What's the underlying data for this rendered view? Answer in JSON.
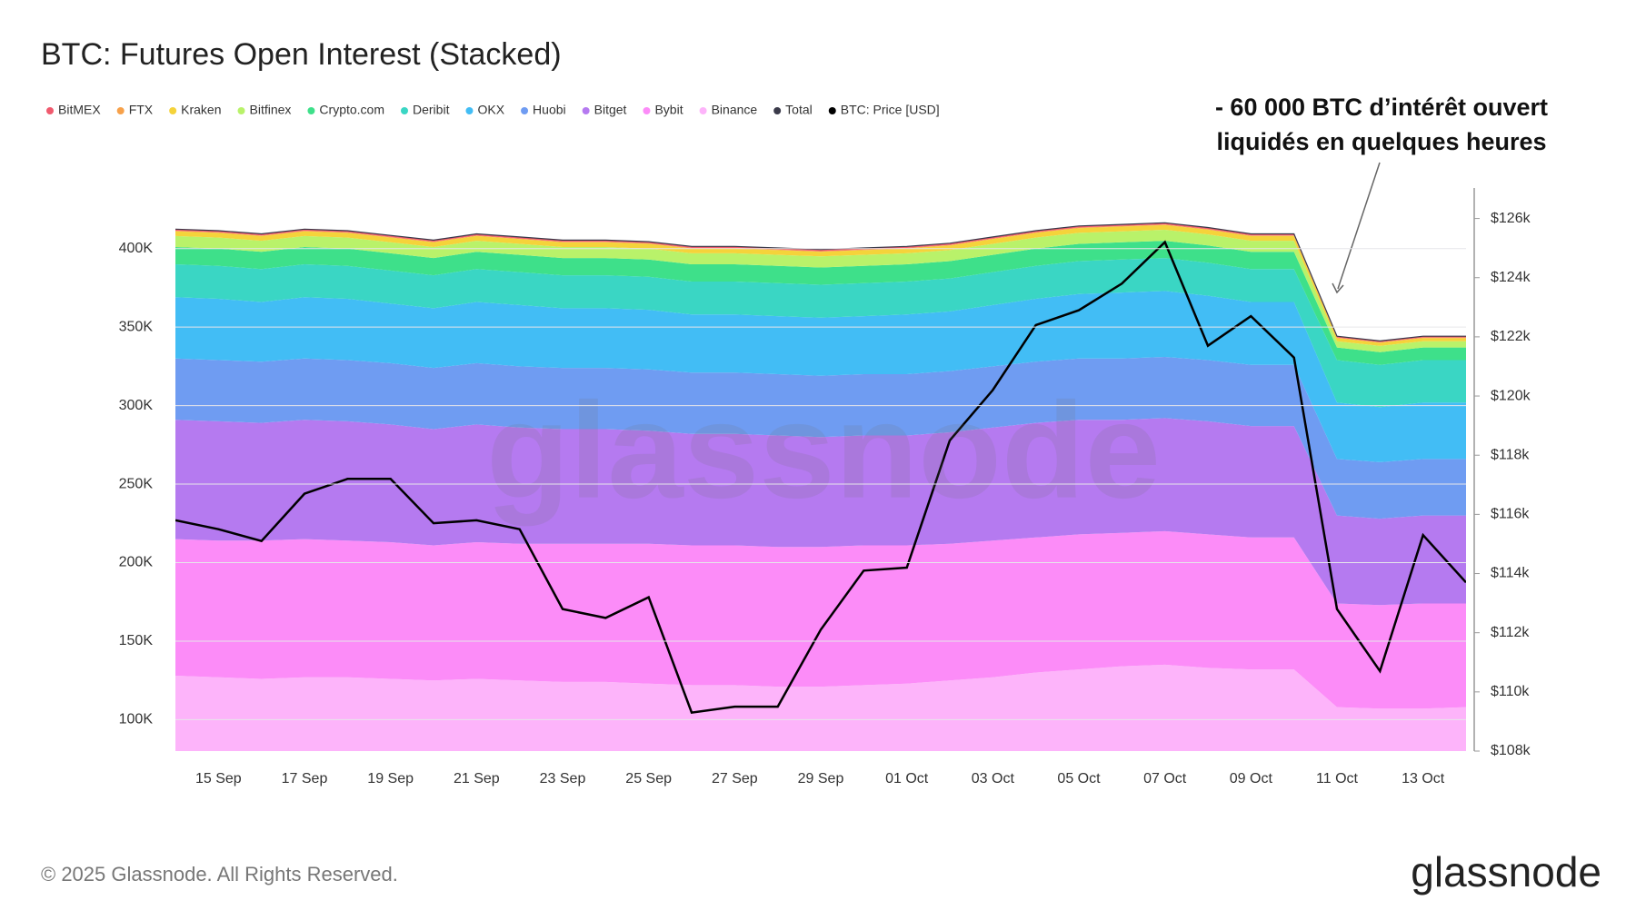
{
  "chart_data": {
    "type": "area",
    "stacked": true,
    "title": "BTC: Futures Open Interest (Stacked)",
    "annotation": [
      "- 60 000 BTC d’intérêt ouvert",
      "liquidés en quelques heures"
    ],
    "watermark": "glassnode",
    "footer": "© 2025 Glassnode. All Rights Reserved.",
    "logo": "glassnode",
    "grid": true,
    "categories": [
      null,
      "15 Sep",
      null,
      "17 Sep",
      null,
      "19 Sep",
      null,
      "21 Sep",
      null,
      "23 Sep",
      null,
      "25 Sep",
      null,
      "27 Sep",
      null,
      "29 Sep",
      null,
      "01 Oct",
      null,
      "03 Oct",
      null,
      "05 Oct",
      null,
      "07 Oct",
      null,
      "09 Oct",
      null,
      "11 Oct",
      null,
      "13 Oct",
      null
    ],
    "ylim": [
      80000,
      438000
    ],
    "yticks": [
      {
        "value": 100000,
        "label": "100K"
      },
      {
        "value": 150000,
        "label": "150K"
      },
      {
        "value": 200000,
        "label": "200K"
      },
      {
        "value": 250000,
        "label": "250K"
      },
      {
        "value": 300000,
        "label": "300K"
      },
      {
        "value": 350000,
        "label": "350K"
      },
      {
        "value": 400000,
        "label": "400K"
      }
    ],
    "y2lim": [
      108000,
      127000
    ],
    "y2ticks": [
      {
        "value": 108000,
        "label": "$108k"
      },
      {
        "value": 110000,
        "label": "$110k"
      },
      {
        "value": 112000,
        "label": "$112k"
      },
      {
        "value": 114000,
        "label": "$114k"
      },
      {
        "value": 116000,
        "label": "$116k"
      },
      {
        "value": 118000,
        "label": "$118k"
      },
      {
        "value": 120000,
        "label": "$120k"
      },
      {
        "value": 122000,
        "label": "$122k"
      },
      {
        "value": 124000,
        "label": "$124k"
      },
      {
        "value": 126000,
        "label": "$126k"
      }
    ],
    "series": [
      {
        "name": "BitMEX",
        "color": "#f05a6e",
        "values": [
          1000,
          1000,
          1000,
          1000,
          1000,
          1000,
          1000,
          1000,
          1000,
          1000,
          1000,
          1000,
          1000,
          1000,
          1000,
          1000,
          1000,
          1000,
          1000,
          1000,
          1000,
          1000,
          1000,
          1000,
          1000,
          1000,
          1000,
          800,
          800,
          800,
          800
        ]
      },
      {
        "name": "FTX",
        "color": "#f7a14a",
        "values": [
          400,
          400,
          400,
          400,
          400,
          400,
          400,
          400,
          400,
          400,
          400,
          400,
          400,
          400,
          400,
          400,
          400,
          400,
          400,
          400,
          400,
          400,
          400,
          400,
          400,
          400,
          400,
          400,
          400,
          400,
          400
        ]
      },
      {
        "name": "Kraken",
        "color": "#f5d33a",
        "values": [
          3000,
          3000,
          3000,
          3000,
          3000,
          3000,
          3000,
          3000,
          3000,
          3000,
          3000,
          3000,
          3000,
          3000,
          3000,
          3000,
          3000,
          3000,
          3000,
          3000,
          3000,
          3000,
          3000,
          3000,
          3000,
          3000,
          3000,
          2000,
          2000,
          2000,
          2000
        ]
      },
      {
        "name": "Bitfinex",
        "color": "#b9f26a",
        "values": [
          7000,
          7000,
          7000,
          7000,
          7000,
          7000,
          7000,
          7000,
          7000,
          7000,
          7000,
          7000,
          7000,
          7000,
          7000,
          7000,
          7000,
          7000,
          7000,
          7000,
          7000,
          7000,
          7000,
          7000,
          7000,
          7000,
          7000,
          4000,
          4000,
          4000,
          4000
        ]
      },
      {
        "name": "Crypto.com",
        "color": "#3ee08a",
        "values": [
          11000,
          11000,
          11000,
          11000,
          11000,
          11000,
          11000,
          11000,
          11000,
          11000,
          11000,
          11000,
          11000,
          11000,
          11000,
          11000,
          11000,
          11000,
          11000,
          11000,
          11000,
          11000,
          11000,
          11000,
          11000,
          11000,
          11000,
          8000,
          8000,
          8000,
          8000
        ]
      },
      {
        "name": "Deribit",
        "color": "#3ad6c4",
        "values": [
          21000,
          21000,
          21000,
          21000,
          21000,
          21000,
          21000,
          21000,
          21000,
          21000,
          21000,
          21000,
          21000,
          21000,
          21000,
          21000,
          21000,
          21000,
          21000,
          21000,
          21000,
          21000,
          21000,
          21000,
          21000,
          21000,
          21000,
          27000,
          27000,
          27000,
          27000
        ]
      },
      {
        "name": "OKX",
        "color": "#42bdf5",
        "values": [
          39000,
          39000,
          38000,
          39000,
          39000,
          38000,
          38000,
          39000,
          39000,
          38000,
          38000,
          38000,
          37000,
          37000,
          37000,
          37000,
          37000,
          38000,
          38000,
          39000,
          40000,
          41000,
          42000,
          42000,
          41000,
          40000,
          40000,
          36000,
          35000,
          36000,
          36000
        ]
      },
      {
        "name": "Huobi",
        "color": "#6f9cf2",
        "values": [
          39000,
          39000,
          39000,
          39000,
          39000,
          39000,
          39000,
          39000,
          39000,
          39000,
          39000,
          39000,
          39000,
          39000,
          39000,
          39000,
          39000,
          39000,
          39000,
          39000,
          39000,
          39000,
          39000,
          39000,
          39000,
          39000,
          39000,
          36000,
          36000,
          36000,
          36000
        ]
      },
      {
        "name": "Bitget",
        "color": "#b57af0",
        "values": [
          76000,
          76000,
          75000,
          76000,
          76000,
          75000,
          74000,
          75000,
          74000,
          73000,
          73000,
          72000,
          71000,
          71000,
          71000,
          70000,
          70000,
          70000,
          71000,
          72000,
          73000,
          73000,
          72000,
          72000,
          72000,
          71000,
          71000,
          56000,
          55000,
          56000,
          56000
        ]
      },
      {
        "name": "Bybit",
        "color": "#fc8cf8",
        "values": [
          87000,
          87000,
          88000,
          88000,
          87000,
          87000,
          86000,
          87000,
          87000,
          88000,
          88000,
          89000,
          89000,
          89000,
          89000,
          89000,
          89000,
          88000,
          87000,
          87000,
          86000,
          86000,
          85000,
          85000,
          85000,
          84000,
          84000,
          66000,
          66000,
          67000,
          66000
        ]
      },
      {
        "name": "Binance",
        "color": "#fdb4fa",
        "values": [
          128000,
          127000,
          126000,
          127000,
          127000,
          126000,
          125000,
          126000,
          125000,
          124000,
          124000,
          123000,
          122000,
          122000,
          121000,
          121000,
          122000,
          123000,
          125000,
          127000,
          130000,
          132000,
          134000,
          135000,
          133000,
          132000,
          132000,
          108000,
          107000,
          107000,
          108000
        ]
      },
      {
        "name": "Total",
        "color": "#3a3a4a",
        "type": "line",
        "values": [
          412400,
          411400,
          409400,
          412400,
          411400,
          408400,
          405400,
          409400,
          407400,
          405400,
          405400,
          404400,
          401400,
          401400,
          400400,
          399400,
          400400,
          401400,
          403400,
          407400,
          411400,
          414400,
          415400,
          416400,
          413400,
          409400,
          409400,
          344200,
          341200,
          344200,
          344200
        ]
      },
      {
        "name": "BTC: Price [USD]",
        "color": "#000000",
        "type": "line",
        "axis": "y2",
        "values": [
          115800,
          115500,
          115100,
          116700,
          117200,
          117200,
          115700,
          115800,
          115500,
          112800,
          112500,
          113200,
          109300,
          109500,
          109500,
          112100,
          114100,
          114200,
          118500,
          120200,
          122400,
          122900,
          123800,
          125200,
          121700,
          122700,
          121300,
          112800,
          110700,
          115300,
          113700
        ]
      }
    ]
  }
}
